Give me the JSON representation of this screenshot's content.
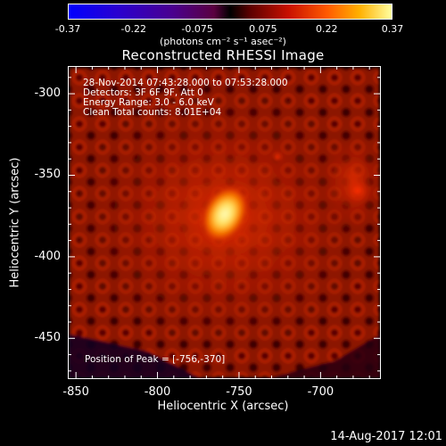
{
  "colorbar": {
    "ticks": [
      "-0.37",
      "-0.22",
      "-0.075",
      "0.075",
      "0.22",
      "0.37"
    ],
    "tick_values": [
      -0.37,
      -0.22,
      -0.075,
      0.075,
      0.22,
      0.37
    ],
    "units": "(photons cm⁻² s⁻¹ asec⁻²)"
  },
  "plot": {
    "title": "Reconstructed RHESSI Image",
    "info": {
      "time": "28-Nov-2014 07:43:28.000 to 07:53:28.000",
      "detectors": "Detectors: 3F 6F 9F, Att 0",
      "energy": "Energy Range: 3.0 - 6.0 keV",
      "method": "Clean    Total counts: 8.01E+04"
    },
    "peak_text": "Position of Peak = [-756,-370]",
    "peak": {
      "x": -756,
      "y": -370
    },
    "xlabel": "Heliocentric X (arcsec)",
    "ylabel": "Heliocentric Y (arcsec)",
    "xticks": [
      "-850",
      "-800",
      "-750",
      "-700"
    ],
    "xtick_values": [
      -850,
      -800,
      -750,
      -700
    ],
    "yticks": [
      "-300",
      "-350",
      "-400",
      "-450"
    ],
    "ytick_values": [
      -300,
      -350,
      -400,
      -450
    ],
    "xlim": [
      -855,
      -663
    ],
    "ylim": [
      -475,
      -283
    ]
  },
  "footer": {
    "date": "14-Aug-2017 12:01"
  },
  "colors": {
    "frame": "#ffffff",
    "background": "#000000"
  }
}
